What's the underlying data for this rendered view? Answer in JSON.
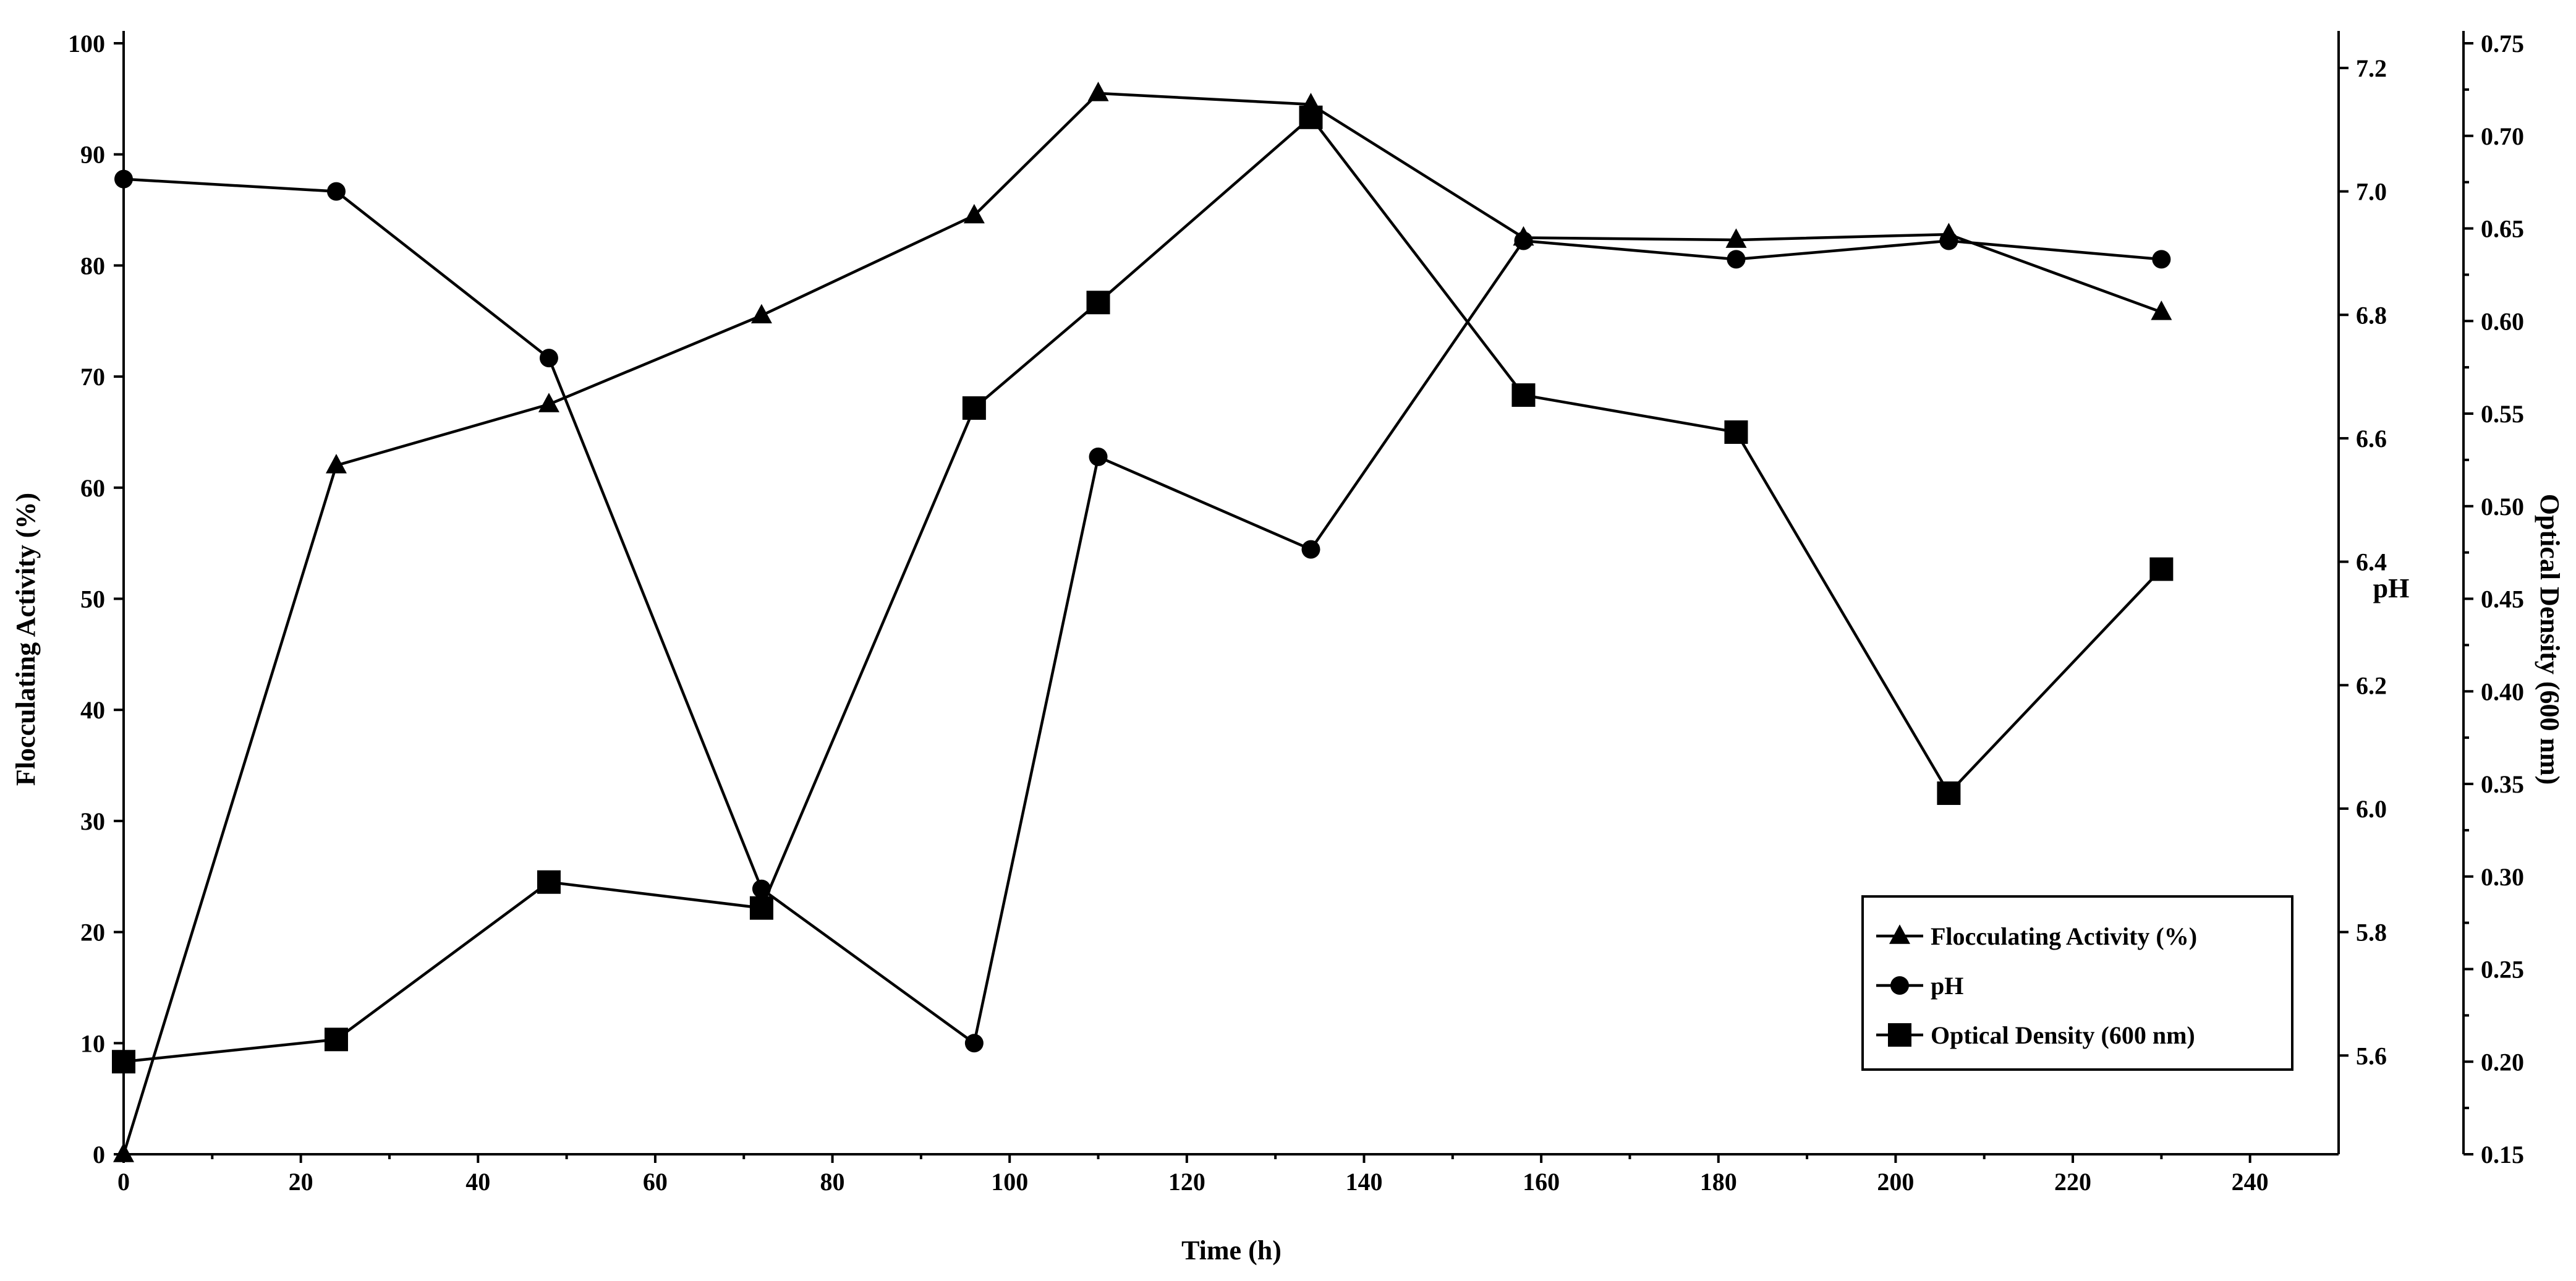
{
  "chart_data": {
    "type": "line",
    "xlabel": "Time (h)",
    "ylabel_left": "Flocculating Activity (%)",
    "ylabel_right1": "pH",
    "ylabel_right2": "Optical Density (600 nm)",
    "xlim": [
      0,
      250
    ],
    "ylim_left": [
      0,
      100
    ],
    "ylim_ph": [
      5.44,
      7.24
    ],
    "ylim_od": [
      0.15,
      0.75
    ],
    "x_ticks": [
      "0",
      "20",
      "40",
      "60",
      "80",
      "100",
      "120",
      "140",
      "160",
      "180",
      "200",
      "220",
      "240"
    ],
    "y_left_ticks": [
      "0",
      "10",
      "20",
      "30",
      "40",
      "50",
      "60",
      "70",
      "80",
      "90",
      "100"
    ],
    "y_ph_ticks": [
      "5.6",
      "5.8",
      "6.0",
      "6.2",
      "6.4",
      "6.6",
      "6.8",
      "7.0",
      "7.2"
    ],
    "y_od_ticks": [
      "0.15",
      "0.20",
      "0.25",
      "0.30",
      "0.35",
      "0.40",
      "0.45",
      "0.50",
      "0.55",
      "0.60",
      "0.65",
      "0.70",
      "0.75"
    ],
    "legend_position": "bottom-right",
    "grid": false,
    "series": [
      {
        "name": "Flocculating Activity (%)",
        "marker": "triangle",
        "axis": "left",
        "x": [
          0,
          24,
          48,
          72,
          96,
          110,
          134,
          158,
          182,
          206,
          230
        ],
        "y": [
          0,
          62,
          67.5,
          75.5,
          84.5,
          95.5,
          94.5,
          82.5,
          82.3,
          82.8,
          75.8
        ]
      },
      {
        "name": "pH",
        "marker": "circle",
        "axis": "ph",
        "x": [
          0,
          24,
          48,
          72,
          96,
          110,
          134,
          158,
          182,
          206,
          230
        ],
        "y": [
          7.02,
          7.0,
          6.73,
          5.87,
          5.62,
          6.57,
          6.42,
          6.92,
          6.89,
          6.92,
          6.89
        ]
      },
      {
        "name": "Optical Density (600 nm)",
        "marker": "square",
        "axis": "od",
        "x": [
          0,
          24,
          48,
          72,
          96,
          110,
          134,
          158,
          182,
          206,
          230
        ],
        "y": [
          0.2,
          0.212,
          0.297,
          0.283,
          0.553,
          0.61,
          0.71,
          0.56,
          0.54,
          0.345,
          0.466
        ]
      }
    ]
  }
}
